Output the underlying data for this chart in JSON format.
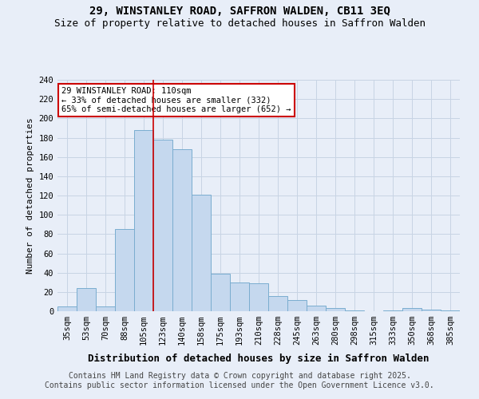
{
  "title_line1": "29, WINSTANLEY ROAD, SAFFRON WALDEN, CB11 3EQ",
  "title_line2": "Size of property relative to detached houses in Saffron Walden",
  "xlabel": "Distribution of detached houses by size in Saffron Walden",
  "ylabel": "Number of detached properties",
  "categories": [
    "35sqm",
    "53sqm",
    "70sqm",
    "88sqm",
    "105sqm",
    "123sqm",
    "140sqm",
    "158sqm",
    "175sqm",
    "193sqm",
    "210sqm",
    "228sqm",
    "245sqm",
    "263sqm",
    "280sqm",
    "298sqm",
    "315sqm",
    "333sqm",
    "350sqm",
    "368sqm",
    "385sqm"
  ],
  "values": [
    5,
    24,
    5,
    85,
    188,
    178,
    168,
    121,
    39,
    30,
    29,
    16,
    12,
    6,
    3,
    1,
    0,
    1,
    3,
    2,
    1
  ],
  "bar_color": "#c5d8ee",
  "bar_edgecolor": "#7aadcf",
  "grid_color": "#c8d4e4",
  "vline_x": 4.5,
  "vline_color": "#cc0000",
  "annotation_text": "29 WINSTANLEY ROAD: 110sqm\n← 33% of detached houses are smaller (332)\n65% of semi-detached houses are larger (652) →",
  "annotation_box_color": "#cc0000",
  "ylim": [
    0,
    240
  ],
  "yticks": [
    0,
    20,
    40,
    60,
    80,
    100,
    120,
    140,
    160,
    180,
    200,
    220,
    240
  ],
  "footer_line1": "Contains HM Land Registry data © Crown copyright and database right 2025.",
  "footer_line2": "Contains public sector information licensed under the Open Government Licence v3.0.",
  "background_color": "#e8eef8",
  "plot_background_color": "#e8eef8",
  "title_fontsize": 10,
  "subtitle_fontsize": 9,
  "xlabel_fontsize": 9,
  "ylabel_fontsize": 8,
  "tick_fontsize": 7.5,
  "footer_fontsize": 7
}
